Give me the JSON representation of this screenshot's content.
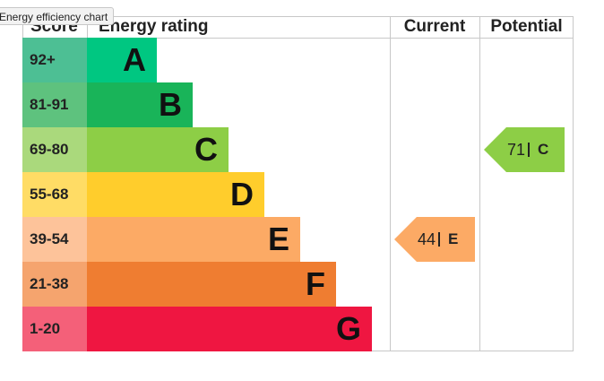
{
  "tooltip": "Energy efficiency chart",
  "header": {
    "score": "Score",
    "rating": "Energy rating",
    "current": "Current",
    "potential": "Potential"
  },
  "bands": [
    {
      "score": "92+",
      "rating": "A",
      "color": "#00c781",
      "score_color": "#4dbf94"
    },
    {
      "score": "81-91",
      "rating": "B",
      "color": "#19b459",
      "score_color": "#5ec27e"
    },
    {
      "score": "69-80",
      "rating": "C",
      "color": "#8dce46",
      "score_color": "#aad97c"
    },
    {
      "score": "55-68",
      "rating": "D",
      "color": "#ffcd2c",
      "score_color": "#ffdc65"
    },
    {
      "score": "39-54",
      "rating": "E",
      "color": "#fcaa65",
      "score_color": "#fdc39a"
    },
    {
      "score": "21-38",
      "rating": "F",
      "color": "#ef7d31",
      "score_color": "#f5a46e"
    },
    {
      "score": "1-20",
      "rating": "G",
      "color": "#ef1641",
      "score_color": "#f46079"
    }
  ],
  "current": {
    "value": 44,
    "rating": "E"
  },
  "potential": {
    "value": 71,
    "rating": "C"
  }
}
